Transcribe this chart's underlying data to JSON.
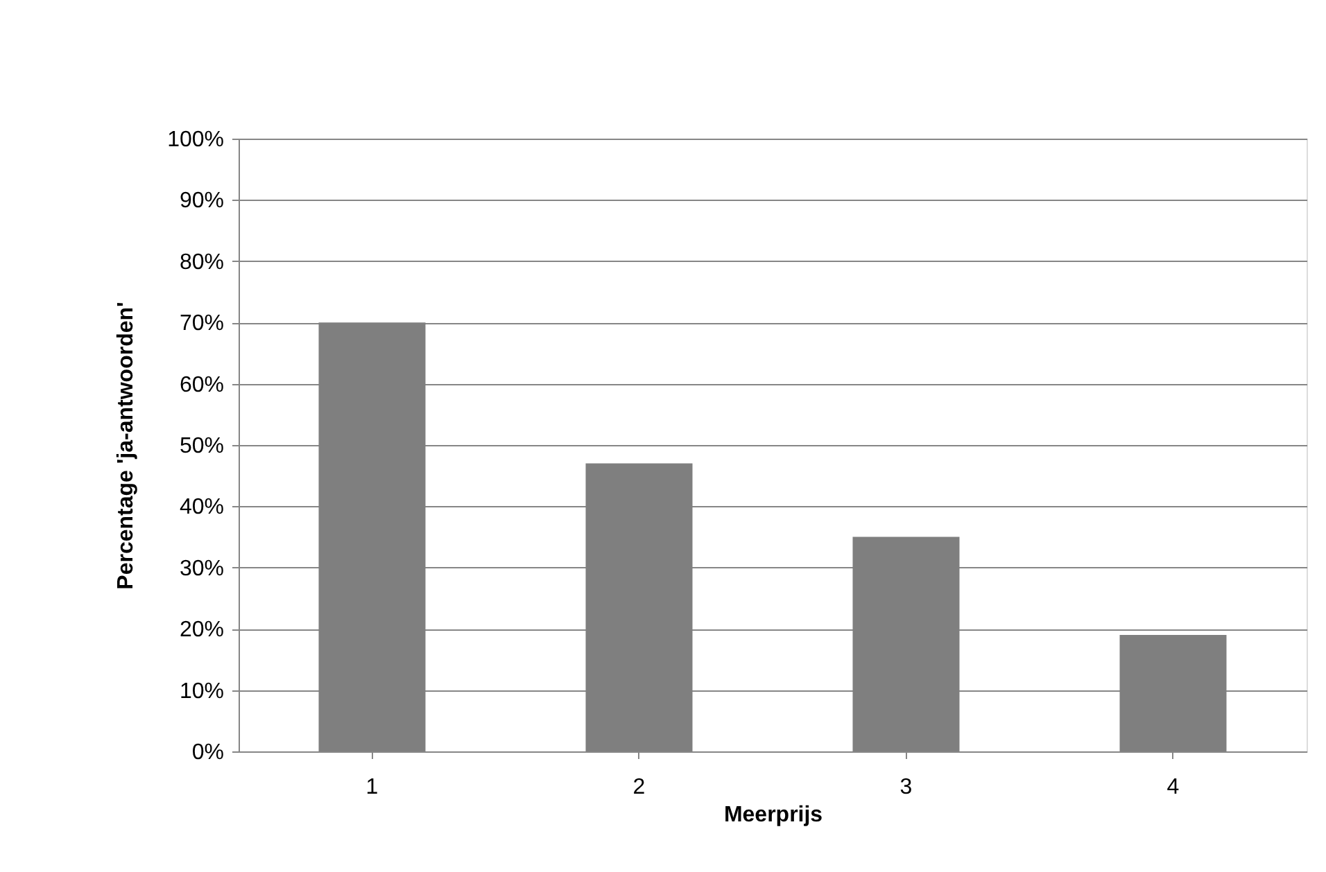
{
  "chart_data": {
    "type": "bar",
    "xlabel": "Meerprijs",
    "ylabel": "Percentage  'ja-antwoorden'",
    "categories": [
      "1",
      "2",
      "3",
      "4"
    ],
    "values": [
      70,
      47,
      35,
      19
    ],
    "color": "#7f7f7f",
    "ylim": [
      0,
      100
    ],
    "yticks": [
      {
        "value": 0,
        "label": "0%"
      },
      {
        "value": 10,
        "label": "10%"
      },
      {
        "value": 20,
        "label": "20%"
      },
      {
        "value": 30,
        "label": "30%"
      },
      {
        "value": 40,
        "label": "40%"
      },
      {
        "value": 50,
        "label": "50%"
      },
      {
        "value": 60,
        "label": "60%"
      },
      {
        "value": 70,
        "label": "70%"
      },
      {
        "value": 80,
        "label": "80%"
      },
      {
        "value": 90,
        "label": "90%"
      },
      {
        "value": 100,
        "label": "100%"
      }
    ],
    "grid": "y"
  }
}
